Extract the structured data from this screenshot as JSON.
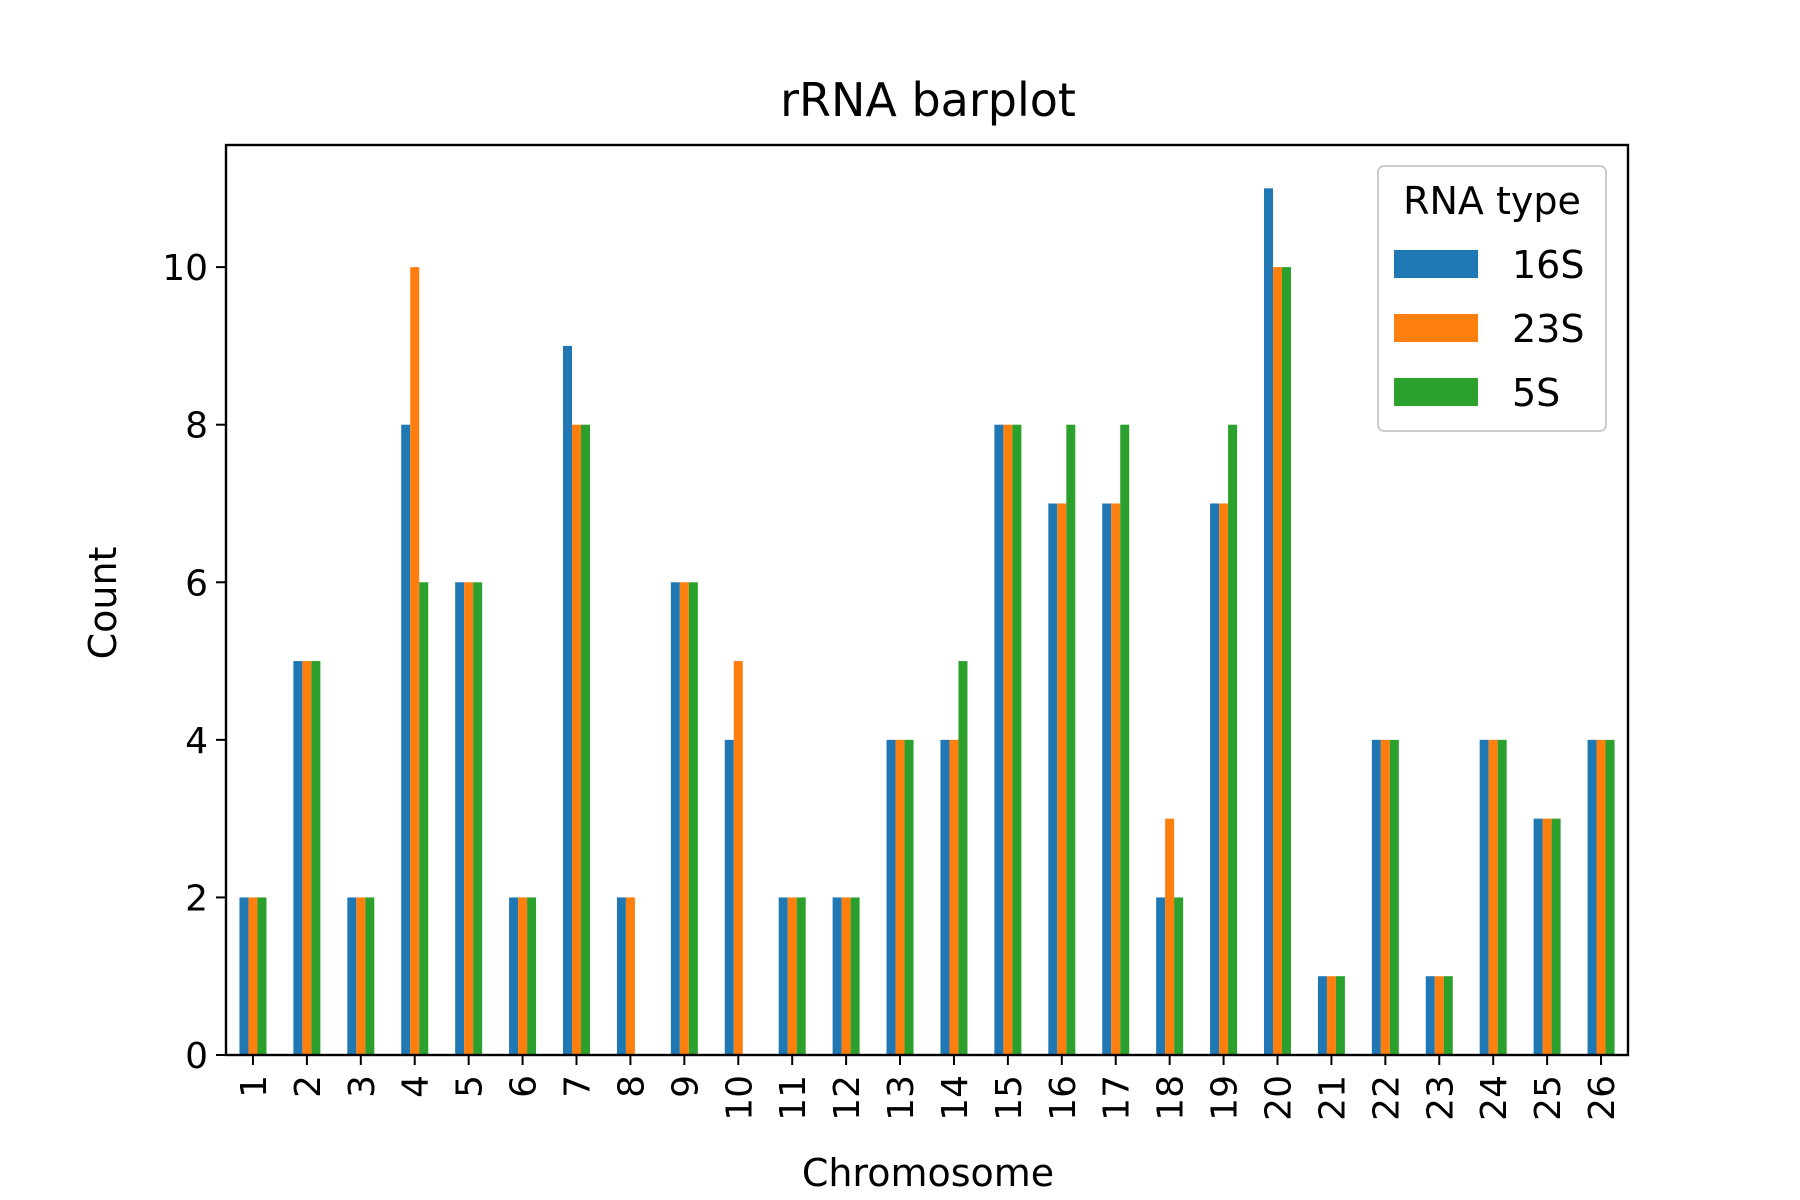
{
  "chart_data": {
    "type": "bar",
    "title": "rRNA barplot",
    "xlabel": "Chromosome",
    "ylabel": "Count",
    "ylim": [
      0,
      11.55
    ],
    "yticks": [
      0,
      2,
      4,
      6,
      8,
      10
    ],
    "categories": [
      "1",
      "2",
      "3",
      "4",
      "5",
      "6",
      "7",
      "8",
      "9",
      "10",
      "11",
      "12",
      "13",
      "14",
      "15",
      "16",
      "17",
      "18",
      "19",
      "20",
      "21",
      "22",
      "23",
      "24",
      "25",
      "26"
    ],
    "legend": {
      "title": "RNA type",
      "position": "top-right"
    },
    "grid": false,
    "series": [
      {
        "name": "16S",
        "color": "#1f77b4",
        "values": [
          2,
          5,
          2,
          8,
          6,
          2,
          9,
          2,
          6,
          4,
          2,
          2,
          4,
          4,
          8,
          7,
          7,
          2,
          7,
          11,
          1,
          4,
          1,
          4,
          3,
          4
        ]
      },
      {
        "name": "23S",
        "color": "#ff7f0e",
        "values": [
          2,
          5,
          2,
          10,
          6,
          2,
          8,
          2,
          6,
          5,
          2,
          2,
          4,
          4,
          8,
          7,
          7,
          3,
          7,
          10,
          1,
          4,
          1,
          4,
          3,
          4
        ]
      },
      {
        "name": "5S",
        "color": "#2ca02c",
        "values": [
          2,
          5,
          2,
          6,
          6,
          2,
          8,
          0,
          6,
          0,
          2,
          2,
          4,
          5,
          8,
          8,
          8,
          2,
          8,
          10,
          1,
          4,
          1,
          4,
          3,
          4
        ]
      }
    ]
  }
}
